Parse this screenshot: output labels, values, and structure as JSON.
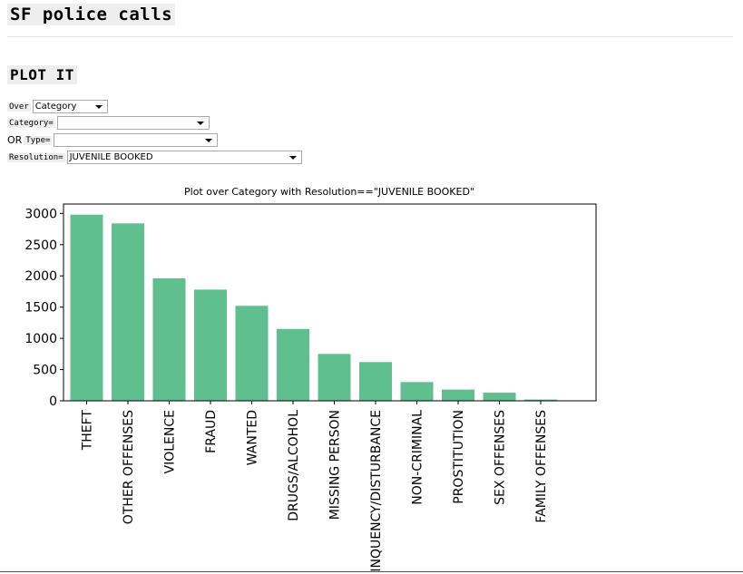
{
  "page": {
    "title": "SF police calls",
    "section_title": "PLOT IT"
  },
  "form": {
    "over_label": "Over",
    "over_value": "Category",
    "category_label": "Category=",
    "category_value": "",
    "or_label": "OR",
    "type_label": "Type=",
    "type_value": "",
    "resolution_label": "Resolution=",
    "resolution_value": "JUVENILE BOOKED"
  },
  "chart_data": {
    "type": "bar",
    "title": "Plot over Category with Resolution==\"JUVENILE BOOKED\"",
    "categories": [
      "THEFT",
      "OTHER OFFENSES",
      "VIOLENCE",
      "FRAUD",
      "WANTED",
      "DRUGS/ALCOHOL",
      "MISSING PERSON",
      "DELINQUENCY/DISTURBANCE",
      "NON-CRIMINAL",
      "PROSTITUTION",
      "SEX OFFENSES",
      "FAMILY OFFENSES"
    ],
    "values": [
      2980,
      2840,
      1960,
      1780,
      1520,
      1150,
      750,
      620,
      300,
      180,
      130,
      20
    ],
    "ylim": [
      0,
      3150
    ],
    "yticks": [
      0,
      500,
      1000,
      1500,
      2000,
      2500,
      3000
    ],
    "bar_color": "#5fbf8f",
    "grid": false
  }
}
